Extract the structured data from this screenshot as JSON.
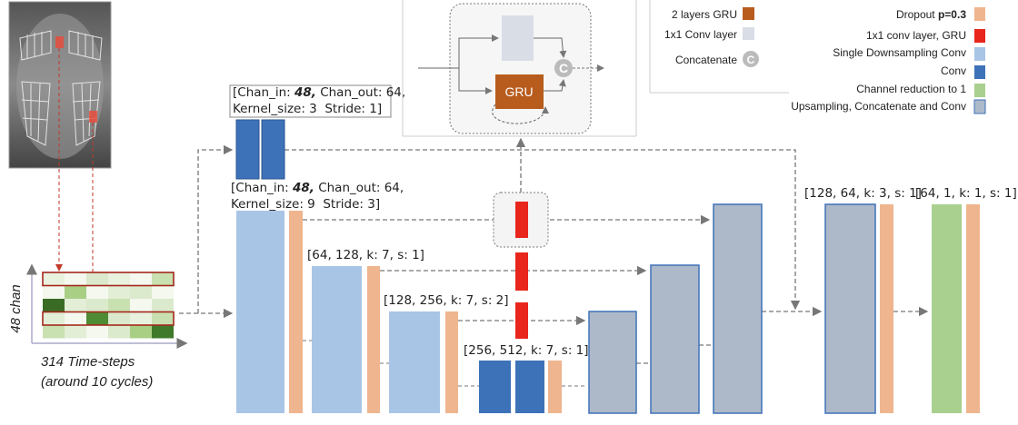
{
  "input": {
    "channels_label": "48 chan",
    "time_label": "314 Time-steps",
    "time_note": "(around 10 cycles)"
  },
  "gru_module": {
    "gru_label": "GRU",
    "concat_symbol": "C"
  },
  "legend_left": [
    {
      "label": "2 layers GRU"
    },
    {
      "label": "1x1 Conv layer"
    },
    {
      "label": "Concatenate",
      "symbol": "C"
    }
  ],
  "legend_right": [
    {
      "label": "Dropout ",
      "emphasis": "p=0.3"
    },
    {
      "label": "1x1 conv layer, GRU"
    },
    {
      "label": "Single Downsampling Conv"
    },
    {
      "label": "Conv"
    },
    {
      "label": "Channel reduction to 1"
    },
    {
      "label": "Upsampling, Concatenate and Conv"
    }
  ],
  "layer_labels": [
    {
      "line1": [
        "[Chan_in: ",
        "48,",
        " Chan_out: 64,"
      ],
      "line2": "Kernel_size: 3  Stride: 1]"
    },
    {
      "line1": [
        "[Chan_in: ",
        "48,",
        " Chan_out: 64,"
      ],
      "line2": "Kernel_size: 9  Stride: 3]"
    },
    {
      "text": "[64, 128, k: 7, s: 1]"
    },
    {
      "text": "[128, 256, k: 7, s: 2]"
    },
    {
      "text": "[256, 512, k: 7, s: 1]"
    },
    {
      "text": "[128, 64, k: 3, s: 1]"
    },
    {
      "text": "[64, 1, k: 1, s: 1]"
    }
  ]
}
